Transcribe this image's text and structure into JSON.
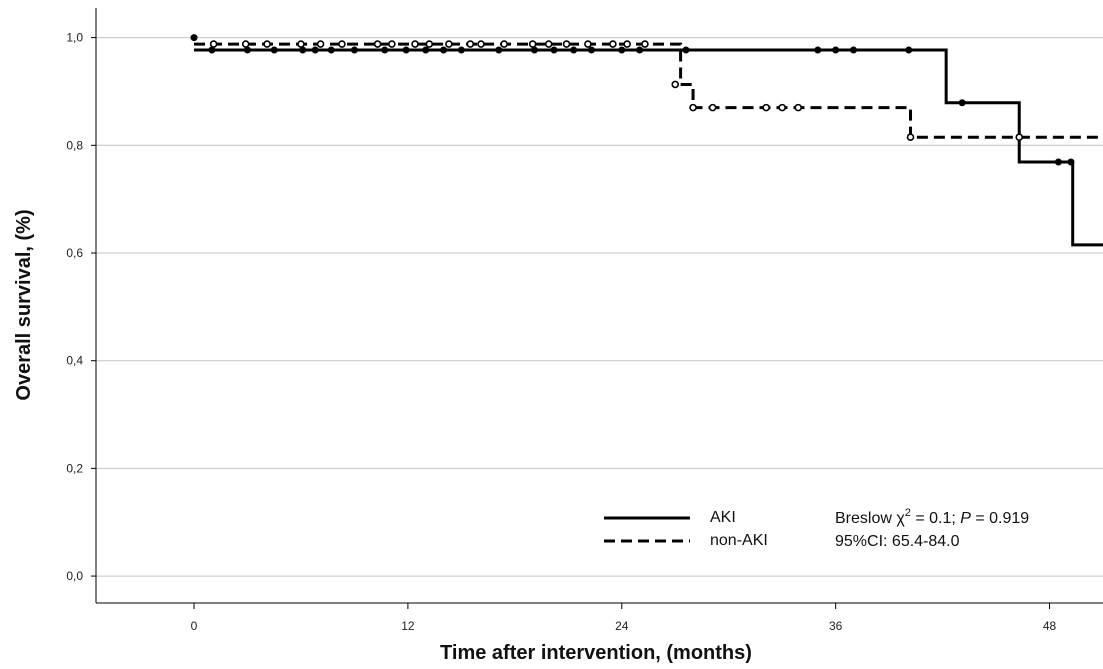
{
  "chart_data": {
    "type": "line",
    "xlabel": "Time after intervention, (months)",
    "ylabel": "Overall survival, (%)",
    "xlim": [
      -5.5,
      51
    ],
    "ylim": [
      -0.05,
      1.055
    ],
    "x_ticks": [
      0,
      12,
      24,
      36,
      48
    ],
    "y_ticks": [
      0.0,
      0.2,
      0.4,
      0.6,
      0.8,
      1.0
    ],
    "x_tick_labels": [
      "0",
      "12",
      "24",
      "36",
      "48"
    ],
    "y_tick_labels": [
      "0,0",
      "0,2",
      "0,4",
      "0,6",
      "0,8",
      "1,0"
    ],
    "grid": {
      "horizontal": true,
      "vertical": false
    },
    "step": true,
    "series": [
      {
        "name": "AKI",
        "style": "solid",
        "color": "#000000",
        "steps": [
          [
            0,
            0.977
          ],
          [
            42.2,
            0.879
          ],
          [
            46.3,
            0.769
          ],
          [
            49.3,
            0.615
          ],
          [
            51,
            0.615
          ]
        ],
        "censored": [
          [
            0,
            1.0
          ],
          [
            1.0,
            0.977
          ],
          [
            3.0,
            0.977
          ],
          [
            4.5,
            0.977
          ],
          [
            6.1,
            0.977
          ],
          [
            6.8,
            0.977
          ],
          [
            7.7,
            0.977
          ],
          [
            9.0,
            0.977
          ],
          [
            10.7,
            0.977
          ],
          [
            11.9,
            0.977
          ],
          [
            13.0,
            0.977
          ],
          [
            14.0,
            0.977
          ],
          [
            15.0,
            0.977
          ],
          [
            17.1,
            0.977
          ],
          [
            19.1,
            0.977
          ],
          [
            20.2,
            0.977
          ],
          [
            21.3,
            0.977
          ],
          [
            22.3,
            0.977
          ],
          [
            24.0,
            0.977
          ],
          [
            25.0,
            0.977
          ],
          [
            27.6,
            0.977
          ],
          [
            35.0,
            0.977
          ],
          [
            36.0,
            0.977
          ],
          [
            37.0,
            0.977
          ],
          [
            40.1,
            0.977
          ],
          [
            43.1,
            0.879
          ],
          [
            48.5,
            0.769
          ],
          [
            49.2,
            0.769
          ]
        ]
      },
      {
        "name": "non-AKI",
        "style": "dashed",
        "color": "#000000",
        "steps": [
          [
            0,
            0.988
          ],
          [
            27.3,
            0.913
          ],
          [
            28.0,
            0.87
          ],
          [
            40.2,
            0.815
          ],
          [
            51,
            0.815
          ]
        ],
        "censored": [
          [
            1.1,
            0.988
          ],
          [
            2.9,
            0.988
          ],
          [
            4.1,
            0.988
          ],
          [
            6.0,
            0.988
          ],
          [
            7.1,
            0.988
          ],
          [
            8.3,
            0.988
          ],
          [
            10.3,
            0.988
          ],
          [
            11.1,
            0.988
          ],
          [
            12.4,
            0.988
          ],
          [
            13.2,
            0.988
          ],
          [
            14.3,
            0.988
          ],
          [
            15.5,
            0.988
          ],
          [
            16.1,
            0.988
          ],
          [
            17.4,
            0.988
          ],
          [
            19.0,
            0.988
          ],
          [
            19.9,
            0.988
          ],
          [
            20.9,
            0.988
          ],
          [
            22.1,
            0.988
          ],
          [
            23.5,
            0.988
          ],
          [
            24.3,
            0.988
          ],
          [
            25.3,
            0.988
          ],
          [
            27.0,
            0.913
          ],
          [
            28.0,
            0.87
          ],
          [
            29.1,
            0.87
          ],
          [
            32.1,
            0.87
          ],
          [
            33.0,
            0.87
          ],
          [
            33.9,
            0.87
          ],
          [
            40.2,
            0.815
          ],
          [
            46.3,
            0.815
          ]
        ]
      }
    ],
    "legend": {
      "placement": "bottom-center",
      "entries": [
        {
          "label": "AKI",
          "style": "solid"
        },
        {
          "label": "non-AKI",
          "style": "dashed"
        }
      ]
    },
    "annotation": {
      "line1_prefix": "Breslow χ",
      "line1_sup": "2",
      "line1_mid": " = 0.1; ",
      "line1_p": "P",
      "line1_suffix": " = 0.919",
      "line2": "95%CI: 65.4-84.0"
    }
  }
}
